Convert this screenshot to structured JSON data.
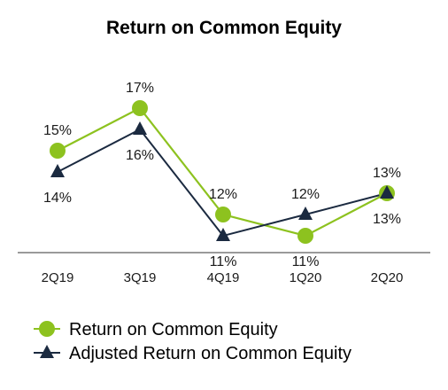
{
  "chart_data": {
    "type": "line",
    "title": "Return on Common Equity",
    "categories": [
      "2Q19",
      "3Q19",
      "4Q19",
      "1Q20",
      "2Q20"
    ],
    "series": [
      {
        "name": "Return on Common Equity",
        "values": [
          15,
          17,
          12,
          11,
          13
        ],
        "labels": [
          "15%",
          "17%",
          "12%",
          "11%",
          "13%"
        ],
        "color": "#8dc21f",
        "marker": "circle"
      },
      {
        "name": "Adjusted Return on Common Equity",
        "values": [
          14,
          16,
          11,
          12,
          13
        ],
        "labels": [
          "14%",
          "16%",
          "11%",
          "12%",
          "13%"
        ],
        "color": "#1b2a40",
        "marker": "triangle"
      }
    ],
    "ylim": [
      9,
      19
    ],
    "grid": false,
    "legend_position": "bottom"
  }
}
